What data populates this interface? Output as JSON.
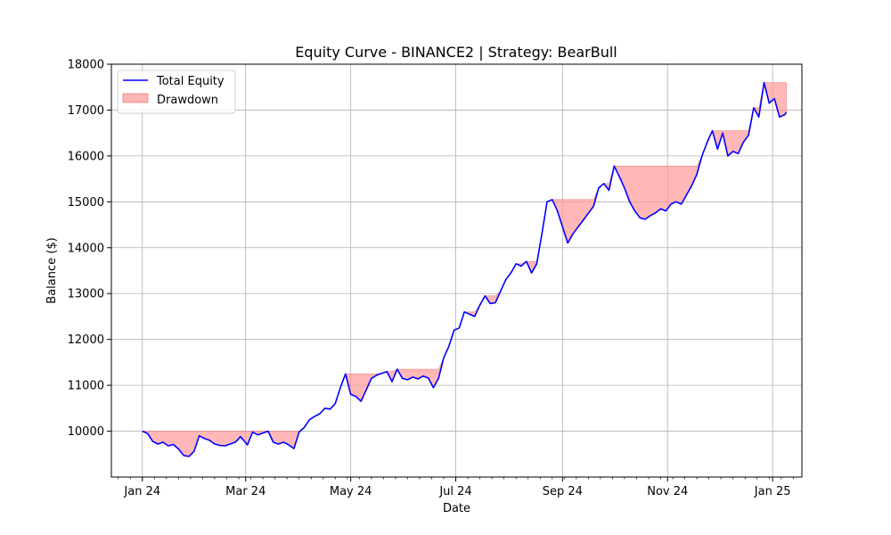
{
  "chart_data": {
    "type": "line",
    "title": "Equity Curve - BINANCE2 | Strategy: BearBull",
    "xlabel": "Date",
    "ylabel": "Balance ($)",
    "x_ticks": [
      {
        "date": "2024-01-01",
        "label": "Jan 24"
      },
      {
        "date": "2024-03-01",
        "label": "Mar 24"
      },
      {
        "date": "2024-05-01",
        "label": "May 24"
      },
      {
        "date": "2024-07-01",
        "label": "Jul 24"
      },
      {
        "date": "2024-09-01",
        "label": "Sep 24"
      },
      {
        "date": "2024-11-01",
        "label": "Nov 24"
      },
      {
        "date": "2025-01-01",
        "label": "Jan 25"
      }
    ],
    "xlim": [
      "2023-12-14",
      "2025-01-18"
    ],
    "ylim": [
      9000,
      18000
    ],
    "y_ticks": [
      {
        "value": 10000,
        "label": "10000"
      },
      {
        "value": 11000,
        "label": "11000"
      },
      {
        "value": 12000,
        "label": "12000"
      },
      {
        "value": 13000,
        "label": "13000"
      },
      {
        "value": 14000,
        "label": "14000"
      },
      {
        "value": 15000,
        "label": "15000"
      },
      {
        "value": 16000,
        "label": "16000"
      },
      {
        "value": 17000,
        "label": "17000"
      },
      {
        "value": 18000,
        "label": "18000"
      }
    ],
    "grid": true,
    "legend_position": "top-left",
    "series": [
      {
        "name": "Total Equity",
        "color": "#0000ff",
        "points": [
          [
            "2024-01-01",
            10000
          ],
          [
            "2024-01-04",
            9950
          ],
          [
            "2024-01-07",
            9780
          ],
          [
            "2024-01-10",
            9720
          ],
          [
            "2024-01-13",
            9760
          ],
          [
            "2024-01-16",
            9680
          ],
          [
            "2024-01-19",
            9710
          ],
          [
            "2024-01-22",
            9610
          ],
          [
            "2024-01-25",
            9470
          ],
          [
            "2024-01-28",
            9450
          ],
          [
            "2024-01-31",
            9560
          ],
          [
            "2024-02-03",
            9900
          ],
          [
            "2024-02-06",
            9840
          ],
          [
            "2024-02-09",
            9800
          ],
          [
            "2024-02-12",
            9720
          ],
          [
            "2024-02-15",
            9690
          ],
          [
            "2024-02-18",
            9680
          ],
          [
            "2024-02-21",
            9720
          ],
          [
            "2024-02-24",
            9760
          ],
          [
            "2024-02-27",
            9880
          ],
          [
            "2024-03-02",
            9700
          ],
          [
            "2024-03-05",
            9980
          ],
          [
            "2024-03-08",
            9920
          ],
          [
            "2024-03-11",
            9960
          ],
          [
            "2024-03-14",
            10000
          ],
          [
            "2024-03-17",
            9760
          ],
          [
            "2024-03-20",
            9720
          ],
          [
            "2024-03-23",
            9760
          ],
          [
            "2024-03-26",
            9700
          ],
          [
            "2024-03-29",
            9620
          ],
          [
            "2024-04-01",
            9980
          ],
          [
            "2024-04-04",
            10080
          ],
          [
            "2024-04-07",
            10250
          ],
          [
            "2024-04-10",
            10320
          ],
          [
            "2024-04-13",
            10380
          ],
          [
            "2024-04-16",
            10500
          ],
          [
            "2024-04-19",
            10480
          ],
          [
            "2024-04-22",
            10600
          ],
          [
            "2024-04-25",
            10950
          ],
          [
            "2024-04-28",
            11250
          ],
          [
            "2024-05-01",
            10800
          ],
          [
            "2024-05-04",
            10760
          ],
          [
            "2024-05-07",
            10650
          ],
          [
            "2024-05-10",
            10900
          ],
          [
            "2024-05-13",
            11150
          ],
          [
            "2024-05-16",
            11220
          ],
          [
            "2024-05-19",
            11260
          ],
          [
            "2024-05-22",
            11300
          ],
          [
            "2024-05-25",
            11080
          ],
          [
            "2024-05-28",
            11350
          ],
          [
            "2024-05-31",
            11150
          ],
          [
            "2024-06-03",
            11120
          ],
          [
            "2024-06-06",
            11180
          ],
          [
            "2024-06-09",
            11140
          ],
          [
            "2024-06-12",
            11200
          ],
          [
            "2024-06-15",
            11160
          ],
          [
            "2024-06-18",
            10950
          ],
          [
            "2024-06-21",
            11150
          ],
          [
            "2024-06-24",
            11600
          ],
          [
            "2024-06-27",
            11850
          ],
          [
            "2024-06-30",
            12200
          ],
          [
            "2024-07-03",
            12250
          ],
          [
            "2024-07-06",
            12600
          ],
          [
            "2024-07-09",
            12550
          ],
          [
            "2024-07-12",
            12500
          ],
          [
            "2024-07-15",
            12750
          ],
          [
            "2024-07-18",
            12950
          ],
          [
            "2024-07-21",
            12780
          ],
          [
            "2024-07-24",
            12800
          ],
          [
            "2024-07-27",
            13050
          ],
          [
            "2024-07-30",
            13300
          ],
          [
            "2024-08-02",
            13450
          ],
          [
            "2024-08-05",
            13650
          ],
          [
            "2024-08-08",
            13600
          ],
          [
            "2024-08-11",
            13700
          ],
          [
            "2024-08-14",
            13450
          ],
          [
            "2024-08-17",
            13650
          ],
          [
            "2024-08-20",
            14300
          ],
          [
            "2024-08-23",
            15000
          ],
          [
            "2024-08-26",
            15050
          ],
          [
            "2024-08-29",
            14800
          ],
          [
            "2024-09-01",
            14450
          ],
          [
            "2024-09-04",
            14100
          ],
          [
            "2024-09-07",
            14300
          ],
          [
            "2024-09-10",
            14450
          ],
          [
            "2024-09-13",
            14600
          ],
          [
            "2024-09-16",
            14750
          ],
          [
            "2024-09-19",
            14900
          ],
          [
            "2024-09-22",
            15300
          ],
          [
            "2024-09-25",
            15400
          ],
          [
            "2024-09-28",
            15250
          ],
          [
            "2024-10-01",
            15780
          ],
          [
            "2024-10-04",
            15550
          ],
          [
            "2024-10-07",
            15300
          ],
          [
            "2024-10-10",
            15000
          ],
          [
            "2024-10-13",
            14800
          ],
          [
            "2024-10-16",
            14650
          ],
          [
            "2024-10-19",
            14620
          ],
          [
            "2024-10-22",
            14700
          ],
          [
            "2024-10-25",
            14760
          ],
          [
            "2024-10-28",
            14850
          ],
          [
            "2024-10-31",
            14800
          ],
          [
            "2024-11-03",
            14950
          ],
          [
            "2024-11-06",
            15000
          ],
          [
            "2024-11-09",
            14950
          ],
          [
            "2024-11-12",
            15150
          ],
          [
            "2024-11-15",
            15350
          ],
          [
            "2024-11-18",
            15600
          ],
          [
            "2024-11-21",
            16000
          ],
          [
            "2024-11-24",
            16300
          ],
          [
            "2024-11-27",
            16550
          ],
          [
            "2024-11-30",
            16150
          ],
          [
            "2024-12-03",
            16500
          ],
          [
            "2024-12-06",
            16000
          ],
          [
            "2024-12-09",
            16100
          ],
          [
            "2024-12-12",
            16050
          ],
          [
            "2024-12-15",
            16300
          ],
          [
            "2024-12-18",
            16450
          ],
          [
            "2024-12-21",
            17050
          ],
          [
            "2024-12-24",
            16850
          ],
          [
            "2024-12-27",
            17600
          ],
          [
            "2024-12-30",
            17150
          ],
          [
            "2025-01-02",
            17250
          ],
          [
            "2025-01-05",
            16850
          ],
          [
            "2025-01-08",
            16900
          ],
          [
            "2025-01-09",
            16950
          ]
        ]
      },
      {
        "name": "Drawdown",
        "color": "#ff9999",
        "fill_opacity": 0.7,
        "description_from": "running peak of Total Equity"
      }
    ]
  }
}
